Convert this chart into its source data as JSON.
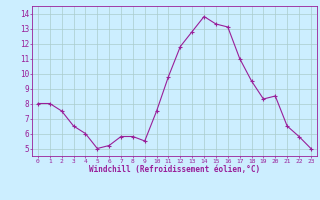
{
  "x": [
    0,
    1,
    2,
    3,
    4,
    5,
    6,
    7,
    8,
    9,
    10,
    11,
    12,
    13,
    14,
    15,
    16,
    17,
    18,
    19,
    20,
    21,
    22,
    23
  ],
  "y": [
    8.0,
    8.0,
    7.5,
    6.5,
    6.0,
    5.0,
    5.2,
    5.8,
    5.8,
    5.5,
    7.5,
    9.8,
    11.8,
    12.8,
    13.8,
    13.3,
    13.1,
    11.0,
    9.5,
    8.3,
    8.5,
    6.5,
    5.8,
    5.0
  ],
  "line_color": "#991f99",
  "marker": "+",
  "marker_size": 3,
  "bg_color": "#cceeff",
  "grid_color": "#aacccc",
  "xlabel": "Windchill (Refroidissement éolien,°C)",
  "xlim_min": -0.5,
  "xlim_max": 23.5,
  "ylim_min": 4.5,
  "ylim_max": 14.5,
  "yticks": [
    5,
    6,
    7,
    8,
    9,
    10,
    11,
    12,
    13,
    14
  ],
  "xticks": [
    0,
    1,
    2,
    3,
    4,
    5,
    6,
    7,
    8,
    9,
    10,
    11,
    12,
    13,
    14,
    15,
    16,
    17,
    18,
    19,
    20,
    21,
    22,
    23
  ],
  "tick_color": "#991f99",
  "label_color": "#991f99",
  "spine_color": "#991f99"
}
